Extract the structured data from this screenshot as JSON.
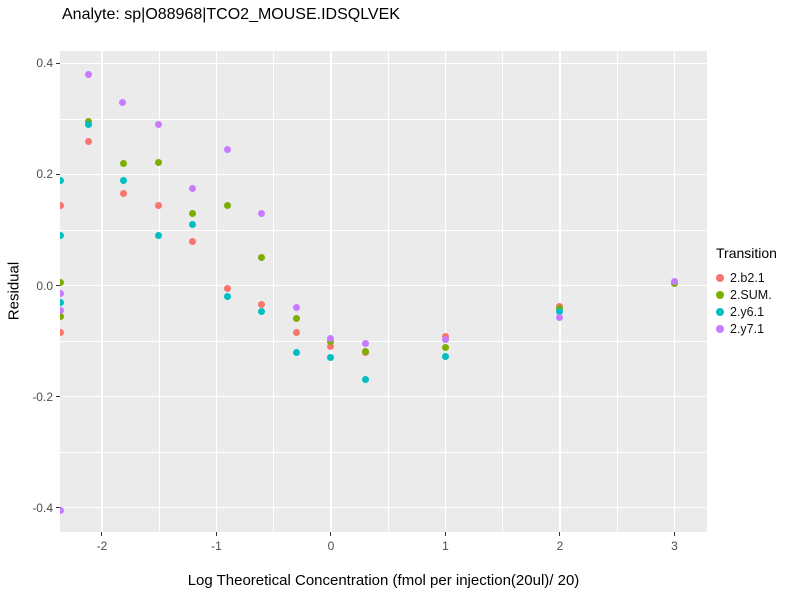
{
  "chart_data": {
    "type": "scatter",
    "title": "Analyte: sp|O88968|TCO2_MOUSE.IDSQLVEK",
    "xlabel": "Log Theoretical Concentration (fmol per injection(20ul)/ 20)",
    "ylabel": "Residual",
    "panel_background": "#EBEBEB",
    "grid_color": "#FFFFFF",
    "x_axis": {
      "domain": [
        -2.3668,
        3.2843
      ],
      "major_ticks": [
        -2,
        -1,
        0,
        1,
        2,
        3
      ],
      "tick_labels": [
        "-2",
        "-1",
        "0",
        "1",
        "2",
        "3"
      ],
      "minor_ticks": [
        -1.5,
        -0.5,
        0.5,
        1.5,
        2.5
      ]
    },
    "y_axis": {
      "domain": [
        -0.4432,
        0.4225
      ],
      "major_ticks": [
        0.4,
        0.2,
        0.0,
        -0.2,
        -0.4
      ],
      "tick_labels": [
        "0.4",
        "0.2",
        "0.0",
        "-0.2",
        "-0.4"
      ],
      "minor_ticks": [
        0.3,
        0.1,
        -0.1,
        -0.3
      ]
    },
    "legend": {
      "title": "Transition",
      "position": "right",
      "entries": [
        "2.b2.1",
        "2.SUM.",
        "2.y6.1",
        "2.y7.1"
      ]
    },
    "series": [
      {
        "name": "2.b2.1",
        "color": "#F8766D",
        "points": [
          [
            -2.3668,
            0.145
          ],
          [
            -2.3668,
            -0.085
          ],
          [
            -2.12,
            0.26
          ],
          [
            -1.81,
            0.165
          ],
          [
            -1.51,
            0.145
          ],
          [
            -1.21,
            0.08
          ],
          [
            -0.9,
            -0.005
          ],
          [
            -0.61,
            -0.035
          ],
          [
            -0.3,
            -0.085
          ],
          [
            0.0,
            -0.11
          ],
          [
            0.3,
            -0.12
          ],
          [
            1.0,
            -0.091
          ],
          [
            2.0,
            -0.038
          ]
        ]
      },
      {
        "name": "2.SUM.",
        "color": "#7CAE00",
        "points": [
          [
            -2.3668,
            0.005
          ],
          [
            -2.3668,
            -0.055
          ],
          [
            -2.12,
            0.295
          ],
          [
            -1.81,
            0.22
          ],
          [
            -1.51,
            0.222
          ],
          [
            -1.21,
            0.13
          ],
          [
            -0.9,
            0.145
          ],
          [
            -0.61,
            0.05
          ],
          [
            -0.3,
            -0.06
          ],
          [
            0.0,
            -0.1
          ],
          [
            0.3,
            -0.118
          ],
          [
            1.0,
            -0.111
          ],
          [
            2.0,
            -0.042
          ],
          [
            3.0,
            0.004
          ]
        ]
      },
      {
        "name": "2.y6.1",
        "color": "#00BFC4",
        "points": [
          [
            -2.3668,
            0.19
          ],
          [
            -2.3668,
            0.09
          ],
          [
            -2.3668,
            -0.03
          ],
          [
            -2.12,
            0.29
          ],
          [
            -1.81,
            0.19
          ],
          [
            -1.51,
            0.09
          ],
          [
            -1.21,
            0.11
          ],
          [
            -0.9,
            -0.02
          ],
          [
            -0.61,
            -0.046
          ],
          [
            -0.3,
            -0.12
          ],
          [
            0.0,
            -0.13
          ],
          [
            0.3,
            -0.17
          ],
          [
            1.0,
            -0.128
          ],
          [
            2.0,
            -0.047
          ]
        ]
      },
      {
        "name": "2.y7.1",
        "color": "#C77CFF",
        "points": [
          [
            -2.3668,
            -0.015
          ],
          [
            -2.3668,
            -0.045
          ],
          [
            -2.3668,
            -0.405
          ],
          [
            -2.12,
            0.38
          ],
          [
            -1.82,
            0.33
          ],
          [
            -1.51,
            0.29
          ],
          [
            -1.21,
            0.175
          ],
          [
            -0.9,
            0.245
          ],
          [
            -0.61,
            0.13
          ],
          [
            -0.3,
            -0.04
          ],
          [
            0.0,
            -0.095
          ],
          [
            0.3,
            -0.105
          ],
          [
            1.0,
            -0.098
          ],
          [
            2.0,
            -0.057
          ],
          [
            3.0,
            0.007
          ]
        ]
      }
    ]
  }
}
